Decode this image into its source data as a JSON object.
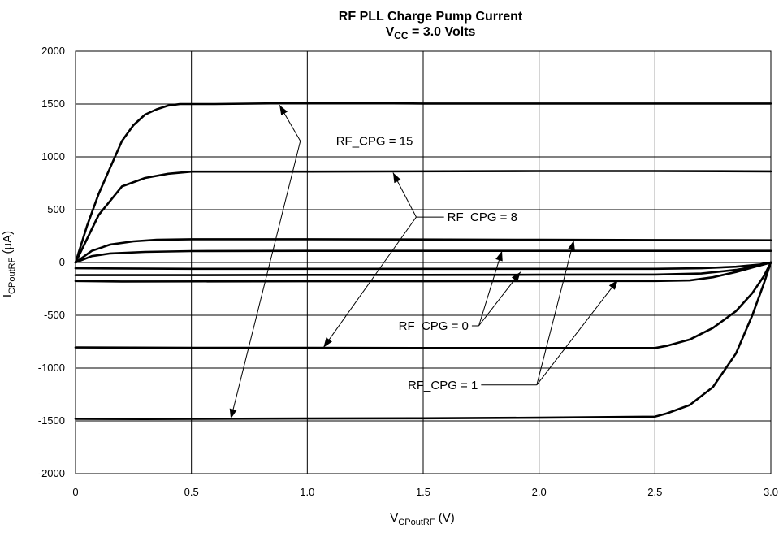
{
  "chart_data": {
    "type": "line",
    "title": "RF PLL Charge Pump Current",
    "subtitle_main": "V",
    "subtitle_sub": "CC",
    "subtitle_rest": " = 3.0 Volts",
    "xlabel_main": "V",
    "xlabel_sub": "CPoutRF",
    "xlabel_rest": " (V)",
    "ylabel_main": "I",
    "ylabel_sub": "CPoutRF",
    "ylabel_rest": " (µA)",
    "xlim": [
      0,
      3.0
    ],
    "ylim": [
      -2000,
      2000
    ],
    "x_ticks": [
      0,
      0.5,
      1.0,
      1.5,
      2.0,
      2.5,
      3.0
    ],
    "x_tick_labels": [
      "0",
      "0.5",
      "1.0",
      "1.5",
      "2.0",
      "2.5",
      "3.0"
    ],
    "y_ticks": [
      2000,
      1500,
      1000,
      500,
      0,
      -500,
      -1000,
      -1500,
      -2000
    ],
    "y_tick_labels": [
      "2000",
      "1500",
      "1000",
      "500",
      "0",
      "-500",
      "-1000",
      "-1500",
      "-2000"
    ],
    "grid": true,
    "series": [
      {
        "points": [
          [
            0,
            0
          ],
          [
            0.05,
            350
          ],
          [
            0.1,
            650
          ],
          [
            0.15,
            900
          ],
          [
            0.2,
            1150
          ],
          [
            0.25,
            1300
          ],
          [
            0.3,
            1400
          ],
          [
            0.35,
            1450
          ],
          [
            0.4,
            1485
          ],
          [
            0.45,
            1500
          ],
          [
            0.6,
            1500
          ],
          [
            1.0,
            1510
          ],
          [
            1.5,
            1505
          ],
          [
            2.0,
            1505
          ],
          [
            2.5,
            1505
          ],
          [
            3.0,
            1505
          ]
        ]
      },
      {
        "points": [
          [
            0,
            0
          ],
          [
            0.1,
            450
          ],
          [
            0.2,
            720
          ],
          [
            0.3,
            800
          ],
          [
            0.4,
            840
          ],
          [
            0.5,
            860
          ],
          [
            1.0,
            860
          ],
          [
            2.0,
            865
          ],
          [
            2.5,
            865
          ],
          [
            3.0,
            862
          ]
        ]
      },
      {
        "points": [
          [
            0,
            0
          ],
          [
            0.07,
            110
          ],
          [
            0.15,
            170
          ],
          [
            0.25,
            200
          ],
          [
            0.35,
            215
          ],
          [
            0.5,
            220
          ],
          [
            1.0,
            220
          ],
          [
            2.0,
            215
          ],
          [
            2.5,
            212
          ],
          [
            3.0,
            210
          ]
        ]
      },
      {
        "points": [
          [
            0,
            0
          ],
          [
            0.07,
            60
          ],
          [
            0.15,
            85
          ],
          [
            0.3,
            100
          ],
          [
            0.5,
            108
          ],
          [
            1.0,
            110
          ],
          [
            2.0,
            110
          ],
          [
            3.0,
            110
          ]
        ]
      },
      {
        "points": [
          [
            0,
            -55
          ],
          [
            0.5,
            -60
          ],
          [
            1.0,
            -60
          ],
          [
            1.5,
            -60
          ],
          [
            2.0,
            -60
          ],
          [
            2.5,
            -60
          ],
          [
            2.7,
            -55
          ],
          [
            2.85,
            -40
          ],
          [
            2.95,
            -20
          ],
          [
            3.0,
            0
          ]
        ]
      },
      {
        "points": [
          [
            0,
            -120
          ],
          [
            0.5,
            -120
          ],
          [
            1.0,
            -118
          ],
          [
            1.5,
            -118
          ],
          [
            2.0,
            -116
          ],
          [
            2.5,
            -115
          ],
          [
            2.7,
            -105
          ],
          [
            2.85,
            -70
          ],
          [
            2.95,
            -30
          ],
          [
            3.0,
            0
          ]
        ]
      },
      {
        "points": [
          [
            0,
            -175
          ],
          [
            0.2,
            -180
          ],
          [
            1.0,
            -178
          ],
          [
            1.5,
            -178
          ],
          [
            2.0,
            -176
          ],
          [
            2.5,
            -175
          ],
          [
            2.65,
            -170
          ],
          [
            2.75,
            -140
          ],
          [
            2.85,
            -90
          ],
          [
            2.95,
            -30
          ],
          [
            3.0,
            0
          ]
        ]
      },
      {
        "points": [
          [
            0,
            -805
          ],
          [
            0.5,
            -808
          ],
          [
            1.0,
            -808
          ],
          [
            1.5,
            -810
          ],
          [
            2.0,
            -810
          ],
          [
            2.5,
            -810
          ],
          [
            2.55,
            -790
          ],
          [
            2.65,
            -730
          ],
          [
            2.75,
            -620
          ],
          [
            2.85,
            -460
          ],
          [
            2.92,
            -290
          ],
          [
            2.97,
            -130
          ],
          [
            3.0,
            0
          ]
        ]
      },
      {
        "points": [
          [
            0,
            -1480
          ],
          [
            0.3,
            -1482
          ],
          [
            1.0,
            -1478
          ],
          [
            1.5,
            -1475
          ],
          [
            2.0,
            -1470
          ],
          [
            2.5,
            -1460
          ],
          [
            2.55,
            -1430
          ],
          [
            2.65,
            -1350
          ],
          [
            2.75,
            -1180
          ],
          [
            2.85,
            -860
          ],
          [
            2.92,
            -500
          ],
          [
            2.97,
            -200
          ],
          [
            3.0,
            0
          ]
        ]
      }
    ],
    "annotations": [
      {
        "label": "RF_CPG = 15",
        "hub": [
          0.97,
          1150
        ],
        "text_anchor": [
          1.11,
          1150
        ],
        "targets": [
          [
            0.88,
            1490
          ],
          [
            0.67,
            -1480
          ]
        ]
      },
      {
        "label": "RF_CPG = 8",
        "hub": [
          1.47,
          430
        ],
        "text_anchor": [
          1.59,
          430
        ],
        "targets": [
          [
            1.37,
            850
          ],
          [
            1.07,
            -805
          ]
        ]
      },
      {
        "label": "RF_CPG = 0",
        "hub": [
          1.74,
          -600
        ],
        "text_anchor": [
          1.71,
          -600
        ],
        "label_align": "end",
        "targets": [
          [
            1.84,
            110
          ],
          [
            1.92,
            -90
          ]
        ]
      },
      {
        "label": "RF_CPG = 1",
        "hub": [
          1.99,
          -1160
        ],
        "text_anchor": [
          1.75,
          -1160
        ],
        "label_align": "end",
        "targets": [
          [
            2.15,
            210
          ],
          [
            2.34,
            -165
          ]
        ]
      }
    ]
  }
}
